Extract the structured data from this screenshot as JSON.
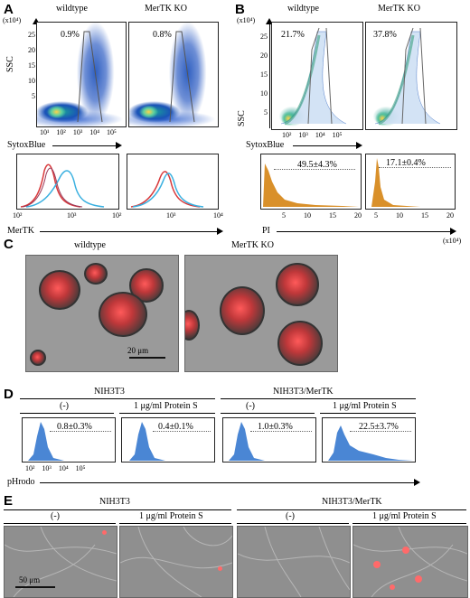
{
  "panels": {
    "A": {
      "label": "A",
      "groups": [
        "wildtype",
        "MerTK KO"
      ],
      "scatter_units": "(x10⁴)",
      "y_ticks": [
        "25",
        "20",
        "15",
        "10",
        "5"
      ],
      "y_label": "SSC",
      "x_ticks": [
        "10¹",
        "10²",
        "10³",
        "10⁴",
        "10⁵"
      ],
      "x_label": "SytoxBlue",
      "gate_percents": [
        "0.9%",
        "0.8%"
      ],
      "hist_x_ticks": [
        "10²",
        "10³",
        "10⁴"
      ],
      "hist_x_label": "MerTK"
    },
    "B": {
      "label": "B",
      "groups": [
        "wildtype",
        "MerTK KO"
      ],
      "scatter_units": "(x10⁴)",
      "y_ticks": [
        "25",
        "20",
        "15",
        "10",
        "5"
      ],
      "y_label": "SSC",
      "x_ticks": [
        "10²",
        "10³",
        "10⁴",
        "10⁵"
      ],
      "x_label": "SytoxBlue",
      "gate_percents": [
        "21.7%",
        "37.8%"
      ],
      "hist_percents": [
        "49.5±4.3%",
        "17.1±0.4%"
      ],
      "hist_x_ticks": [
        "5",
        "10",
        "15",
        "20"
      ],
      "hist_x_label": "PI",
      "hist_units": "(x10⁴)"
    },
    "C": {
      "label": "C",
      "groups": [
        "wildtype",
        "MerTK KO"
      ],
      "scale_bar": "20 μm"
    },
    "D": {
      "label": "D",
      "cell_lines": [
        "NIH3T3",
        "NIH3T3/MerTK"
      ],
      "conditions": [
        "(-)",
        "1 μg/ml Protein S",
        "(-)",
        "1 μg/ml Protein S"
      ],
      "percents": [
        "0.8±0.3%",
        "0.4±0.1%",
        "1.0±0.3%",
        "22.5±3.7%"
      ],
      "x_ticks": [
        "10²",
        "10³",
        "10⁴",
        "10⁵"
      ],
      "x_label": "pHrodo"
    },
    "E": {
      "label": "E",
      "cell_lines": [
        "NIH3T3",
        "NIH3T3/MerTK"
      ],
      "conditions": [
        "(-)",
        "1 μg/ml Protein S",
        "(-)",
        "1 μg/ml Protein S"
      ],
      "scale_bar": "50 μm"
    }
  },
  "colors": {
    "flow_blue": "#4a86d4",
    "pi_orange": "#d9902a",
    "mertk_red": "#d8383a",
    "mertk_cyan": "#3ab0e0"
  }
}
